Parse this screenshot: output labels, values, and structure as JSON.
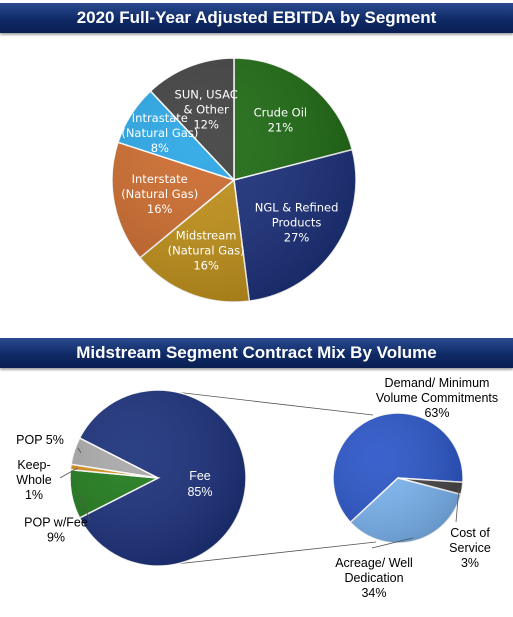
{
  "chart_data": [
    {
      "type": "pie",
      "title": "2020 Full-Year Adjusted EBITDA by Segment",
      "unit": "%",
      "slices": [
        {
          "label_lines": [
            "Crude Oil"
          ],
          "value": 21,
          "value_label": "21%",
          "color": "#1d6a12",
          "text_color": "#ffffff"
        },
        {
          "label_lines": [
            "NGL & Refined",
            "Products"
          ],
          "value": 27,
          "value_label": "27%",
          "color": "#1a2f7a",
          "text_color": "#ffffff"
        },
        {
          "label_lines": [
            "Midstream",
            "(Natural Gas)"
          ],
          "value": 16,
          "value_label": "16%",
          "color": "#c09018",
          "text_color": "#ffffff"
        },
        {
          "label_lines": [
            "Interstate",
            "(Natural Gas)"
          ],
          "value": 16,
          "value_label": "16%",
          "color": "#cc6a2c",
          "text_color": "#ffffff"
        },
        {
          "label_lines": [
            "Intrastate",
            "(Natural Gas)"
          ],
          "value": 8,
          "value_label": "8%",
          "color": "#29a6e6",
          "text_color": "#ffffff"
        },
        {
          "label_lines": [
            "SUN, USAC",
            "& Other"
          ],
          "value": 12,
          "value_label": "12%",
          "color": "#3f3f3f",
          "text_color": "#ffffff"
        }
      ]
    },
    {
      "type": "pie",
      "title": "Midstream Segment Contract Mix By Volume",
      "unit": "%",
      "slices": [
        {
          "label_lines": [
            "Fee"
          ],
          "value": 85,
          "value_label": "85%",
          "color": "#1a2f7a"
        },
        {
          "label_lines": [
            "POP w/Fee"
          ],
          "value": 9,
          "value_label": "9%",
          "color": "#1f7a1a"
        },
        {
          "label_lines": [
            "Keep-",
            "Whole"
          ],
          "value": 1,
          "value_label": "1%",
          "color": "#d4901c"
        },
        {
          "label_lines": [
            "POP 5%"
          ],
          "value": 5,
          "value_label": "",
          "color": "#a8a8a8"
        }
      ],
      "breakdown_of": "Fee",
      "breakdown": [
        {
          "label_lines": [
            "Demand/ Minimum",
            "Volume Commitments"
          ],
          "value": 63,
          "value_label": "63%",
          "color": "#2a55c8"
        },
        {
          "label_lines": [
            "Cost of",
            "Service"
          ],
          "value": 3,
          "value_label": "3%",
          "color": "#444444"
        },
        {
          "label_lines": [
            "Acreage/ Well",
            "Dedication"
          ],
          "value": 34,
          "value_label": "34%",
          "color": "#7ab4f0"
        }
      ]
    }
  ]
}
